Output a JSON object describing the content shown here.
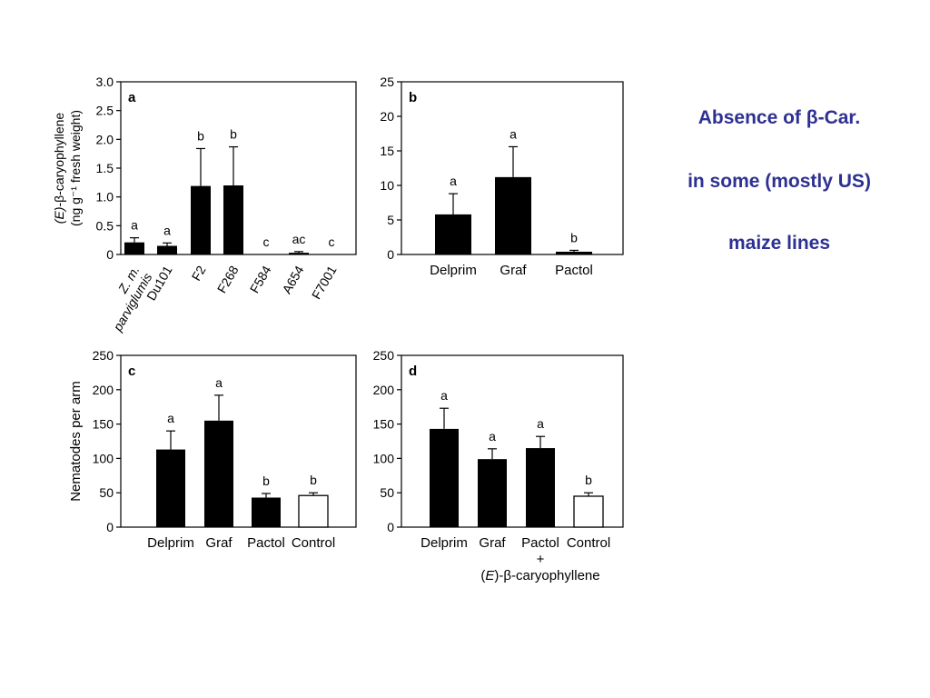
{
  "caption": {
    "line1": "Absence of β-Car.",
    "line2": "in some (mostly US)",
    "line3": "maize lines",
    "color": "#2e3192"
  },
  "chart_data": [
    {
      "panel": "a",
      "type": "bar",
      "title": "",
      "ylabel_line1": "(E)-β-caryophyllene",
      "ylabel_line2": "(ng g⁻¹ fresh weight)",
      "xlabel": "",
      "ylim": [
        0,
        3.0
      ],
      "yticks": [
        "0",
        "0.5",
        "1.0",
        "1.5",
        "2.0",
        "2.5",
        "3.0"
      ],
      "yticks_num": [
        0,
        0.5,
        1.0,
        1.5,
        2.0,
        2.5,
        3.0
      ],
      "categories": [
        "Z. m. parviglumis",
        "Du101",
        "F2",
        "F268",
        "F584",
        "A654",
        "F7001"
      ],
      "category_labels": [
        [
          "Z. m.",
          "parviglumis"
        ],
        [
          "Du101"
        ],
        [
          "F2"
        ],
        [
          "F268"
        ],
        [
          "F584"
        ],
        [
          "A654"
        ],
        [
          "F7001"
        ]
      ],
      "values": [
        0.21,
        0.15,
        1.19,
        1.2,
        0.0,
        0.03,
        0.0
      ],
      "errors": [
        0.08,
        0.05,
        0.65,
        0.67,
        0.0,
        0.02,
        0.0
      ],
      "fill": [
        "#000000",
        "#000000",
        "#000000",
        "#000000",
        "#000000",
        "#000000",
        "#000000"
      ],
      "significance": [
        "a",
        "a",
        "b",
        "b",
        "c",
        "ac",
        "c"
      ],
      "grid": false
    },
    {
      "panel": "b",
      "type": "bar",
      "title": "",
      "xlabel": "",
      "ylabel": "",
      "ylim": [
        0,
        25
      ],
      "yticks": [
        "0",
        "5",
        "10",
        "15",
        "20",
        "25"
      ],
      "yticks_num": [
        0,
        5,
        10,
        15,
        20,
        25
      ],
      "categories": [
        "Delprim",
        "Graf",
        "Pactol"
      ],
      "values": [
        5.8,
        11.2,
        0.4
      ],
      "errors": [
        3.0,
        4.4,
        0.2
      ],
      "fill": [
        "#000000",
        "#000000",
        "#000000"
      ],
      "significance": [
        "a",
        "a",
        "b"
      ],
      "grid": false
    },
    {
      "panel": "c",
      "type": "bar",
      "title": "",
      "xlabel": "",
      "ylabel": "Nematodes per arm",
      "ylim": [
        0,
        250
      ],
      "yticks": [
        "0",
        "50",
        "100",
        "150",
        "200",
        "250"
      ],
      "yticks_num": [
        0,
        50,
        100,
        150,
        200,
        250
      ],
      "categories": [
        "Delprim",
        "Graf",
        "Pactol",
        "Control"
      ],
      "values": [
        113,
        155,
        43,
        46
      ],
      "errors": [
        27,
        37,
        6,
        4
      ],
      "fill": [
        "#000000",
        "#000000",
        "#000000",
        "#ffffff"
      ],
      "significance": [
        "a",
        "a",
        "b",
        "b"
      ],
      "grid": false
    },
    {
      "panel": "d",
      "type": "bar",
      "title": "",
      "ylabel": "",
      "ylim": [
        0,
        250
      ],
      "yticks": [
        "0",
        "50",
        "100",
        "150",
        "200",
        "250"
      ],
      "yticks_num": [
        0,
        50,
        100,
        150,
        200,
        250
      ],
      "categories": [
        "Delprim",
        "Graf",
        "Pactol",
        "Control"
      ],
      "values": [
        143,
        99,
        115,
        45
      ],
      "errors": [
        30,
        15,
        17,
        5
      ],
      "fill": [
        "#000000",
        "#000000",
        "#000000",
        "#ffffff"
      ],
      "significance": [
        "a",
        "a",
        "a",
        "b"
      ],
      "xlabel_plus": "+",
      "xlabel_compound": "(E)-β-caryophyllene",
      "grid": false
    }
  ]
}
